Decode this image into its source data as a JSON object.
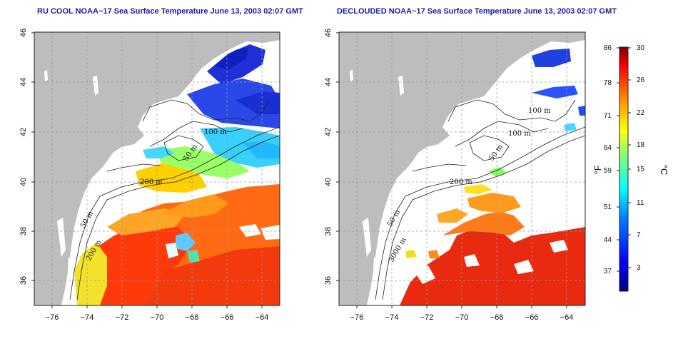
{
  "panels": [
    {
      "title": "RU COOL NOAA−17 Sea Surface Temperature June 13, 2003 02:07 GMT",
      "contour_labels": [
        "100 m",
        "50 m",
        "200 m",
        "50 m",
        "200 m"
      ]
    },
    {
      "title": "DECLOUDED NOAA−17 Sea Surface Temperature June 13, 2003 02:07 GMT",
      "contour_labels": [
        "100 m",
        "100 m",
        "50 m",
        "200 m",
        "50 m",
        "3000 m"
      ]
    }
  ],
  "map_axes": {
    "x_ticks": [
      "−76",
      "−74",
      "−72",
      "−70",
      "−68",
      "−66",
      "−64"
    ],
    "y_ticks": [
      "46",
      "44",
      "42",
      "40",
      "38",
      "36"
    ],
    "lon_range": [
      -77,
      -63
    ],
    "lat_range": [
      35,
      46
    ]
  },
  "colorbar": {
    "fahrenheit_label": "°F",
    "celsius_label": "°C",
    "fahrenheit_ticks": [
      "86",
      "78",
      "71",
      "64",
      "59",
      "51",
      "44",
      "37"
    ],
    "celsius_ticks": [
      "30",
      "26",
      "22",
      "18",
      "15",
      "11",
      "7",
      "3"
    ],
    "range_celsius": [
      0,
      30
    ],
    "colors": [
      "#00007f",
      "#0000ff",
      "#0080ff",
      "#00ffff",
      "#80ff80",
      "#ffff00",
      "#ff8000",
      "#ff0000",
      "#7f0000"
    ]
  },
  "colors": {
    "land": "#bdbdbd",
    "title": "#1a1aa8",
    "contour": "#222222",
    "grid": "#9a9a9a"
  }
}
